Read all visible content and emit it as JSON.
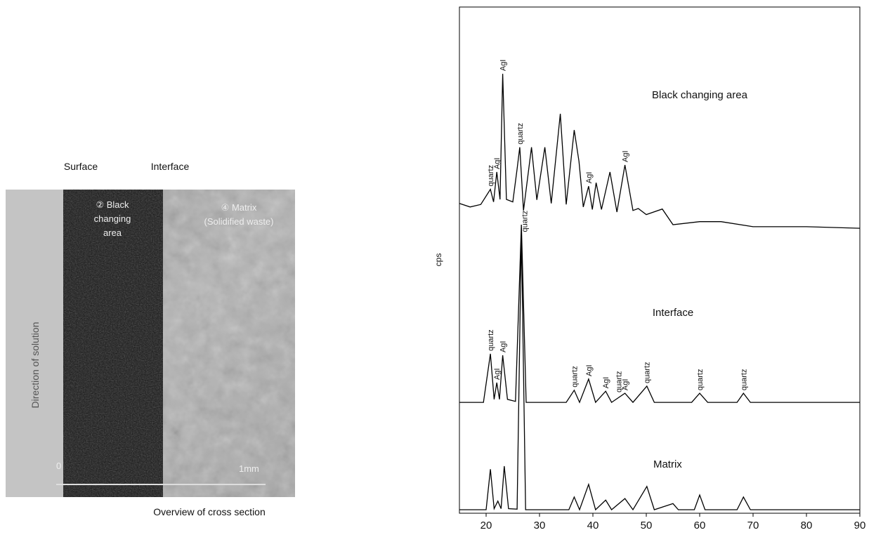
{
  "photo": {
    "surface": "Surface",
    "interface": "Interface",
    "caption": "Overview of cross section",
    "black_label": "② Black",
    "black_label2": "changing",
    "black_label3": "area",
    "matrix_label": "④ Matrix",
    "matrix_label2": "(Solidified waste)",
    "direction": "Direction of solution",
    "scale_start": "0",
    "scale_end": "1mm"
  },
  "chart_data": {
    "type": "line",
    "ylabel": "cps",
    "xlim": [
      15,
      90
    ],
    "xticks": [
      20,
      30,
      40,
      50,
      60,
      70,
      80,
      90
    ],
    "ylim": [
      0,
      100
    ],
    "color": "#000",
    "series": [
      {
        "name": "Black changing area",
        "x": [
          15,
          17,
          19,
          20.8,
          21.4,
          22,
          22.6,
          23.1,
          23.8,
          25,
          25.8,
          26.3,
          27,
          28.5,
          29.5,
          31,
          32.2,
          33.9,
          35,
          36.5,
          37.4,
          38.2,
          39.2,
          39.9,
          40.6,
          41.6,
          43.2,
          44.5,
          46,
          47.5,
          48.5,
          50,
          53,
          55,
          60,
          64,
          70,
          80,
          90
        ],
        "values": [
          61.2,
          60.5,
          61,
          64,
          61.5,
          67.4,
          62,
          86.8,
          62,
          61.5,
          68,
          72.3,
          59.8,
          72.3,
          61.9,
          72.3,
          61.2,
          78.9,
          61,
          75.7,
          69.5,
          60.5,
          64.6,
          60,
          65.3,
          60,
          67.4,
          59.5,
          68.8,
          59.8,
          60.2,
          59,
          60.1,
          57,
          57.6,
          57.6,
          56.6,
          56.6,
          56.3
        ]
      },
      {
        "name": "Interface",
        "x": [
          15,
          19.5,
          20.8,
          21.5,
          22,
          22.5,
          23.1,
          24,
          25.5,
          26.6,
          27.5,
          35,
          36.5,
          37.5,
          39.2,
          40.5,
          42.4,
          43.5,
          46,
          47.5,
          50.1,
          51.5,
          58.5,
          60,
          61.5,
          67,
          68.2,
          69.5,
          90
        ],
        "values": [
          21.9,
          21.9,
          31.5,
          22.5,
          25.8,
          22.5,
          31.2,
          22.5,
          22.1,
          57,
          21.9,
          21.9,
          24.3,
          21.9,
          26.5,
          21.9,
          24.1,
          21.9,
          23.7,
          21.9,
          25.1,
          21.9,
          21.9,
          23.7,
          21.9,
          21.9,
          23.7,
          21.9,
          21.9
        ]
      },
      {
        "name": "Matrix",
        "x": [
          15,
          20,
          20.8,
          21.5,
          22.2,
          22.8,
          23.4,
          24.2,
          25.8,
          26.6,
          27.4,
          35.5,
          36.5,
          37.5,
          39.2,
          40.5,
          42.4,
          43.5,
          46,
          47.5,
          50.1,
          51.5,
          55,
          56,
          59,
          60,
          61,
          67,
          68.2,
          69.5,
          90
        ],
        "values": [
          0.7,
          0.7,
          8.7,
          0.9,
          2.4,
          0.9,
          9.3,
          0.9,
          0.8,
          55.6,
          0.7,
          0.7,
          3.2,
          0.7,
          5.7,
          0.7,
          2.6,
          0.7,
          2.9,
          0.7,
          5.3,
          0.7,
          1.9,
          0.7,
          0.7,
          3.6,
          0.7,
          0.7,
          3.2,
          0.7,
          0.7
        ]
      }
    ],
    "series_labels": [
      {
        "text": "Black changing area",
        "x": 60,
        "y": 82
      },
      {
        "text": "Interface",
        "x": 55,
        "y": 39
      },
      {
        "text": "Matrix",
        "x": 54,
        "y": 9
      }
    ],
    "annotations": [
      {
        "label": "quartz",
        "x": 20.8,
        "y": 64
      },
      {
        "label": "AgI",
        "x": 22,
        "y": 67.4
      },
      {
        "label": "AgI",
        "x": 23.1,
        "y": 86.8
      },
      {
        "label": "quartz",
        "x": 26.3,
        "y": 72.3
      },
      {
        "label": "quartz",
        "x": 27.2,
        "y": 55
      },
      {
        "label": "AgI",
        "x": 39.2,
        "y": 64.6
      },
      {
        "label": "AgI",
        "x": 46,
        "y": 68.8
      },
      {
        "label": "quartz",
        "x": 20.8,
        "y": 31.5
      },
      {
        "label": "AgI",
        "x": 22,
        "y": 25.8
      },
      {
        "label": "AgI",
        "x": 23.1,
        "y": 31.2
      },
      {
        "label": "quartz",
        "x": 36.5,
        "y": 24.3
      },
      {
        "label": "AgI",
        "x": 39.2,
        "y": 26.5
      },
      {
        "label": "AgI",
        "x": 42.4,
        "y": 24.1
      },
      {
        "label": "quartz",
        "x": 44.8,
        "y": 23.3
      },
      {
        "label": "AgI",
        "x": 46,
        "y": 23.7
      },
      {
        "label": "quartz",
        "x": 50.1,
        "y": 25.1
      },
      {
        "label": "quartz",
        "x": 60,
        "y": 23.7
      },
      {
        "label": "quartz",
        "x": 68.2,
        "y": 23.7
      }
    ]
  }
}
